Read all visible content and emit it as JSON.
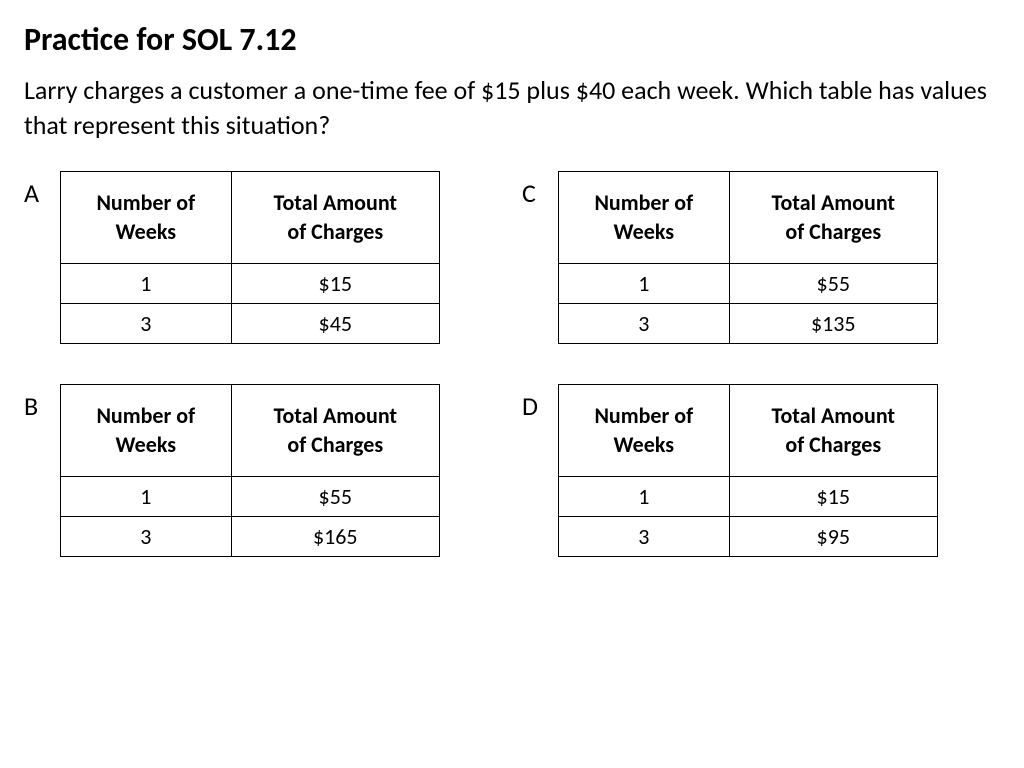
{
  "title": "Practice for SOL 7.12",
  "question": "Larry charges a customer a one-time fee of $15 plus $40 each week. Which table has values that represent this situation?",
  "headers": {
    "weeks_line1": "Number  of",
    "weeks_line2": "Weeks",
    "amount_line1": "Total Amount",
    "amount_line2": "of Charges"
  },
  "options": {
    "A": {
      "label": "A",
      "rows": [
        {
          "weeks": "1",
          "amount": "$15"
        },
        {
          "weeks": "3",
          "amount": "$45"
        }
      ]
    },
    "B": {
      "label": "B",
      "rows": [
        {
          "weeks": "1",
          "amount": "$55"
        },
        {
          "weeks": "3",
          "amount": "$165"
        }
      ]
    },
    "C": {
      "label": "C",
      "rows": [
        {
          "weeks": "1",
          "amount": "$55"
        },
        {
          "weeks": "3",
          "amount": "$135"
        }
      ]
    },
    "D": {
      "label": "D",
      "rows": [
        {
          "weeks": "1",
          "amount": "$15"
        },
        {
          "weeks": "3",
          "amount": "$95"
        }
      ]
    }
  }
}
